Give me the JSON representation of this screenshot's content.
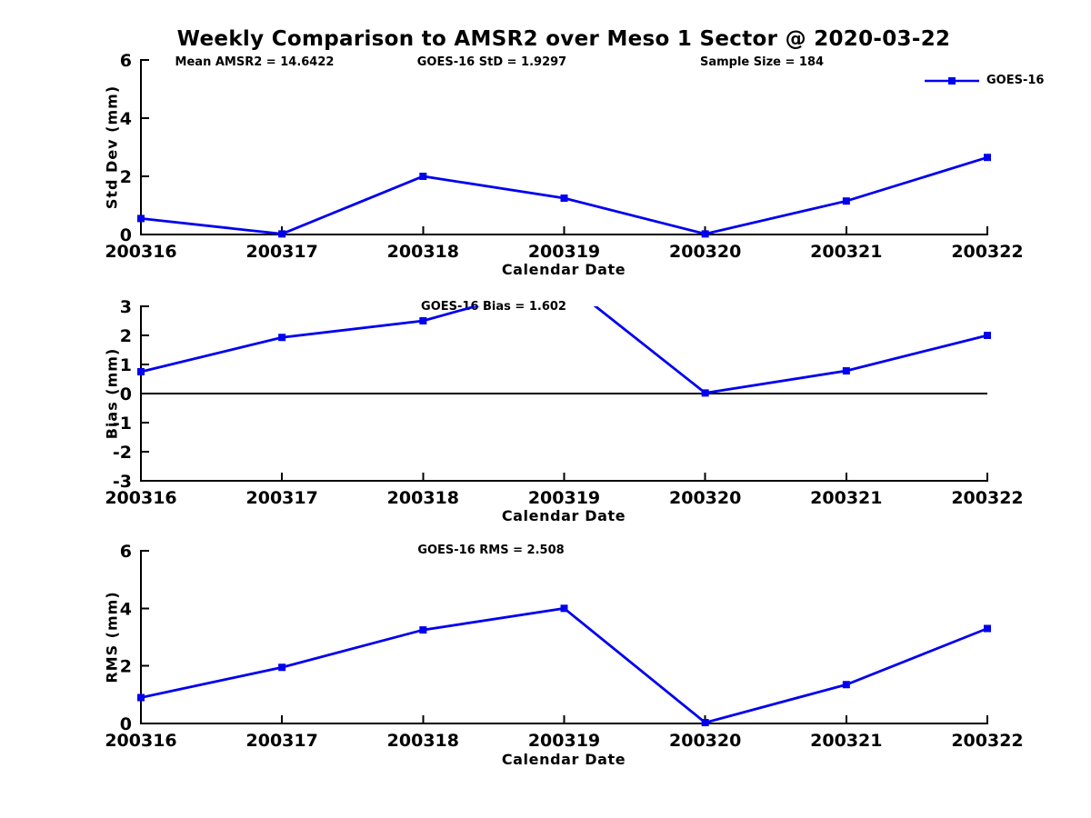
{
  "title": "Weekly Comparison to AMSR2 over Meso 1 Sector @ 2020-03-22",
  "legend": {
    "label": "GOES-16",
    "marker": "square"
  },
  "colors": {
    "line": "#0000EE",
    "axis": "#000000",
    "text": "#000000",
    "background": "#FFFFFF"
  },
  "chart_data": [
    {
      "type": "line",
      "panel": "std-dev",
      "ylabel": "Std Dev (mm)",
      "xlabel": "Calendar Date",
      "categories": [
        "200316",
        "200317",
        "200318",
        "200319",
        "200320",
        "200321",
        "200322"
      ],
      "series": [
        {
          "name": "GOES-16",
          "color": "#0000EE",
          "marker": "square",
          "values": [
            0.55,
            0.02,
            2.0,
            1.25,
            0.02,
            1.15,
            2.65
          ]
        }
      ],
      "ylim": [
        0,
        6
      ],
      "yticks": [
        0,
        2,
        4,
        6
      ],
      "annotations": [
        "Mean AMSR2 = 14.6422",
        "GOES-16 StD = 1.9297",
        "Sample Size = 184"
      ],
      "legend_position": "top-right",
      "zero_line": false,
      "grid": false
    },
    {
      "type": "line",
      "panel": "bias",
      "ylabel": "Bias (mm)",
      "xlabel": "Calendar Date",
      "categories": [
        "200316",
        "200317",
        "200318",
        "200319",
        "200320",
        "200321",
        "200322"
      ],
      "series": [
        {
          "name": "GOES-16",
          "color": "#0000EE",
          "marker": "square",
          "values": [
            0.75,
            1.93,
            2.5,
            3.85,
            0.02,
            0.78,
            2.0
          ]
        }
      ],
      "ylim": [
        -3,
        3
      ],
      "yticks": [
        -3,
        -2,
        -1,
        0,
        1,
        2,
        3
      ],
      "annotations": [
        "GOES-16 Bias  = 1.602"
      ],
      "zero_line": true,
      "grid": false
    },
    {
      "type": "line",
      "panel": "rms",
      "ylabel": "RMS (mm)",
      "xlabel": "Calendar Date",
      "categories": [
        "200316",
        "200317",
        "200318",
        "200319",
        "200320",
        "200321",
        "200322"
      ],
      "series": [
        {
          "name": "GOES-16",
          "color": "#0000EE",
          "marker": "square",
          "values": [
            0.9,
            1.95,
            3.25,
            4.0,
            0.03,
            1.35,
            3.3
          ]
        }
      ],
      "ylim": [
        0,
        6
      ],
      "yticks": [
        0,
        2,
        4,
        6
      ],
      "annotations": [
        "GOES-16 RMS = 2.508"
      ],
      "zero_line": false,
      "grid": false
    }
  ]
}
